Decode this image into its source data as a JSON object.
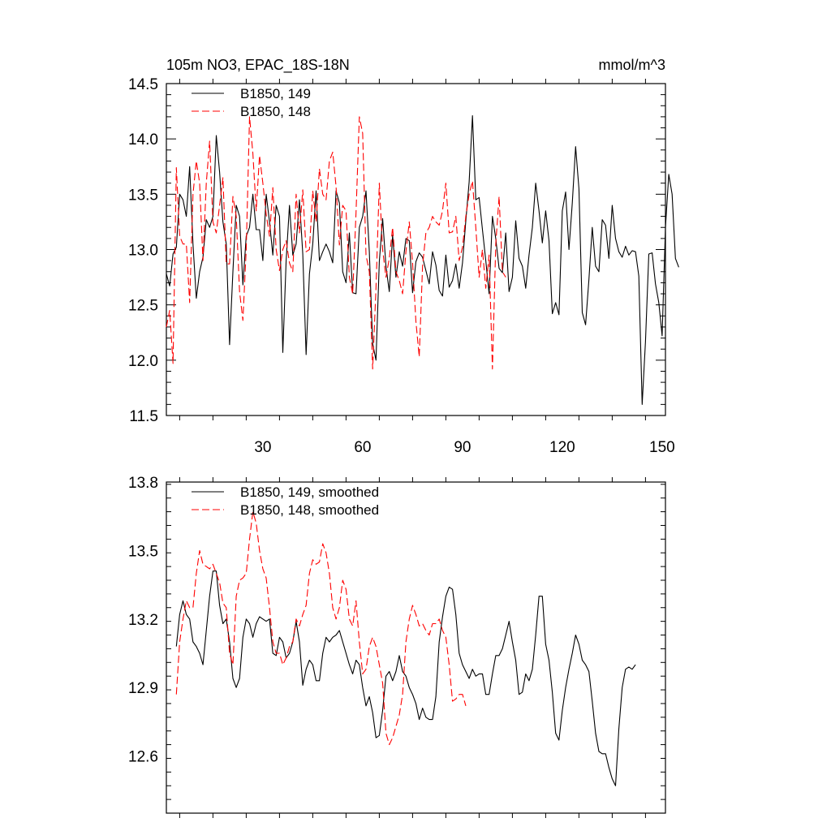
{
  "chart_data": [
    {
      "type": "line",
      "title": "105m NO3, EPAC_18S-18N",
      "units": "mmol/m^3",
      "xlim": [
        1,
        151
      ],
      "ylim": [
        11.5,
        14.5
      ],
      "xticks": [
        30,
        60,
        90,
        120,
        150
      ],
      "xtick_labels": [
        "30",
        "60",
        "90",
        "120",
        "150"
      ],
      "yticks": [
        11.5,
        12.0,
        12.5,
        13.0,
        13.5,
        14.0,
        14.5
      ],
      "ytick_labels": [
        "11.5",
        "12.0",
        "12.5",
        "13.0",
        "13.5",
        "14.0",
        "14.5"
      ],
      "legend": [
        "B1850, 149",
        "B1850, 148"
      ],
      "series": [
        {
          "name": "B1850, 149",
          "color": "#000000",
          "dash": "solid",
          "values": [
            12.78,
            12.67,
            12.96,
            13.02,
            13.5,
            13.45,
            13.3,
            13.75,
            13.05,
            12.56,
            12.8,
            12.93,
            13.27,
            13.2,
            13.3,
            14.03,
            13.7,
            13.25,
            13.05,
            12.14,
            12.8,
            13.4,
            13.3,
            12.68,
            13.12,
            13.2,
            13.5,
            13.18,
            13.18,
            12.9,
            13.5,
            13.25,
            12.95,
            13.4,
            13.3,
            12.07,
            12.9,
            13.4,
            12.95,
            13.05,
            13.45,
            12.96,
            12.05,
            12.78,
            13.05,
            13.53,
            12.9,
            12.98,
            13.05,
            12.98,
            12.88,
            13.53,
            13.42,
            12.8,
            12.7,
            13.15,
            12.61,
            12.6,
            13.2,
            13.3,
            13.53,
            12.98,
            12.15,
            12.0,
            12.89,
            13.28,
            12.85,
            12.62,
            13.13,
            12.75,
            12.98,
            12.85,
            13.1,
            13.08,
            12.61,
            12.89,
            12.97,
            12.93,
            12.81,
            12.69,
            12.98,
            12.86,
            12.63,
            12.58,
            12.95,
            12.66,
            12.72,
            12.87,
            12.65,
            12.88,
            13.26,
            13.61,
            14.21,
            13.45,
            13.47,
            13.18,
            12.9,
            12.6,
            13.3,
            13.1,
            12.83,
            12.79,
            13.15,
            12.62,
            12.75,
            13.26,
            12.92,
            12.85,
            12.65,
            12.95,
            13.2,
            13.6,
            13.35,
            13.06,
            13.35,
            13.08,
            12.42,
            12.52,
            12.41,
            13.35,
            13.52,
            13.0,
            13.42,
            13.93,
            13.55,
            12.43,
            12.32,
            12.73,
            13.2,
            12.85,
            12.8,
            13.27,
            13.22,
            12.92,
            13.4,
            13.1,
            12.98,
            12.93,
            13.03,
            12.95,
            12.99,
            12.98,
            12.76,
            11.6,
            12.17,
            12.96,
            12.97,
            12.69,
            12.52,
            12.22,
            13.2,
            13.68,
            13.5,
            12.92,
            12.84
          ]
        },
        {
          "name": "B1850, 148",
          "color": "#ff0000",
          "dash": "dashed",
          "values": [
            12.3,
            12.45,
            11.97,
            13.74,
            13.12,
            13.05,
            13.05,
            12.52,
            13.5,
            13.8,
            13.6,
            12.9,
            13.6,
            13.98,
            13.25,
            13.15,
            13.4,
            13.65,
            12.87,
            12.87,
            13.48,
            13.3,
            12.62,
            12.36,
            13.0,
            14.2,
            13.87,
            13.35,
            13.85,
            13.6,
            13.32,
            13.12,
            13.56,
            13.0,
            12.81,
            13.0,
            13.08,
            12.88,
            12.8,
            13.5,
            13.15,
            13.54,
            12.98,
            13.0,
            13.53,
            13.25,
            13.73,
            13.5,
            13.45,
            13.8,
            13.88,
            13.57,
            13.04,
            13.4,
            13.35,
            12.75,
            12.6,
            13.33,
            14.2,
            14.05,
            12.95,
            12.8,
            11.92,
            12.65,
            13.6,
            13.0,
            12.75,
            12.92,
            13.2,
            12.8,
            12.72,
            12.6,
            12.98,
            13.25,
            12.88,
            12.35,
            12.03,
            12.85,
            13.15,
            13.2,
            13.3,
            13.25,
            13.22,
            13.35,
            13.6,
            13.15,
            13.16,
            13.3,
            12.9,
            13.02,
            13.3,
            13.5,
            13.62,
            13.2,
            12.75,
            13.0,
            12.65,
            12.95,
            11.92,
            13.05,
            13.48,
            12.8,
            12.75
          ]
        }
      ]
    },
    {
      "type": "line",
      "title": "",
      "xlim": [
        1,
        151
      ],
      "ylim": [
        12.35,
        13.8
      ],
      "xticks": [
        30,
        60,
        90,
        120,
        150
      ],
      "yticks": [
        12.6,
        12.9,
        13.2,
        13.5,
        13.8
      ],
      "ytick_labels": [
        "12.6",
        "12.9",
        "13.2",
        "13.5",
        "13.8"
      ],
      "legend": [
        "B1850, 149, smoothed",
        "B1850, 148, smoothed"
      ],
      "series": [
        {
          "name": "B1850, 149, smoothed",
          "color": "#000000",
          "dash": "solid",
          "start_x": 4,
          "values": [
            13.08,
            13.22,
            13.28,
            13.22,
            13.2,
            13.1,
            13.08,
            13.05,
            13.0,
            13.15,
            13.3,
            13.41,
            13.41,
            13.26,
            13.18,
            13.2,
            13.1,
            12.94,
            12.9,
            12.94,
            13.12,
            13.2,
            13.18,
            13.12,
            13.18,
            13.21,
            13.2,
            13.19,
            13.2,
            13.05,
            13.04,
            13.12,
            13.1,
            13.03,
            13.05,
            13.1,
            13.19,
            13.1,
            12.91,
            12.98,
            13.02,
            13.0,
            12.93,
            12.93,
            13.05,
            13.12,
            13.1,
            13.12,
            13.13,
            13.15,
            13.1,
            13.05,
            13.0,
            12.96,
            13.02,
            13.0,
            12.9,
            12.82,
            12.86,
            12.79,
            12.68,
            12.69,
            12.8,
            12.95,
            12.97,
            12.93,
            12.97,
            13.04,
            12.97,
            12.95,
            12.9,
            12.87,
            12.83,
            12.76,
            12.81,
            12.77,
            12.76,
            12.76,
            12.86,
            13.1,
            13.21,
            13.3,
            13.34,
            13.33,
            13.22,
            13.05,
            13.0,
            12.97,
            12.94,
            12.98,
            12.95,
            12.96,
            12.96,
            12.87,
            12.87,
            12.96,
            13.04,
            13.04,
            13.07,
            13.13,
            13.19,
            13.1,
            13.02,
            12.87,
            12.88,
            12.96,
            12.93,
            12.98,
            13.13,
            13.3,
            13.3,
            13.09,
            13.02,
            12.88,
            12.7,
            12.67,
            12.8,
            12.9,
            12.98,
            13.05,
            13.13,
            13.09,
            13.02,
            13.0,
            12.97,
            12.84,
            12.7,
            12.62,
            12.61,
            12.61,
            12.55,
            12.5,
            12.47,
            12.72,
            12.9,
            12.98,
            12.99,
            12.98,
            13.0
          ]
        },
        {
          "name": "B1850, 148, smoothed",
          "color": "#ff0000",
          "dash": "dashed",
          "start_x": 4,
          "values": [
            12.87,
            13.1,
            13.2,
            13.28,
            13.25,
            13.25,
            13.4,
            13.5,
            13.44,
            13.43,
            13.42,
            13.44,
            13.4,
            13.36,
            13.27,
            13.25,
            13.05,
            13.0,
            13.3,
            13.37,
            13.38,
            13.4,
            13.55,
            13.67,
            13.62,
            13.5,
            13.42,
            13.38,
            13.25,
            13.1,
            13.05,
            13.05,
            13.0,
            13.03,
            13.08,
            13.1,
            13.2,
            13.17,
            13.22,
            13.26,
            13.4,
            13.46,
            13.44,
            13.45,
            13.53,
            13.49,
            13.4,
            13.25,
            13.2,
            13.25,
            13.37,
            13.33,
            13.2,
            13.17,
            13.28,
            13.1,
            12.96,
            12.98,
            13.08,
            13.12,
            13.08,
            13.0,
            12.92,
            12.7,
            12.65,
            12.68,
            12.73,
            12.78,
            12.87,
            13.1,
            13.2,
            13.26,
            13.22,
            13.17,
            13.18,
            13.15,
            13.13,
            13.18,
            13.18,
            13.2,
            13.15,
            13.12,
            13.0,
            12.84,
            12.85,
            12.87,
            12.87,
            12.82
          ]
        }
      ]
    }
  ]
}
